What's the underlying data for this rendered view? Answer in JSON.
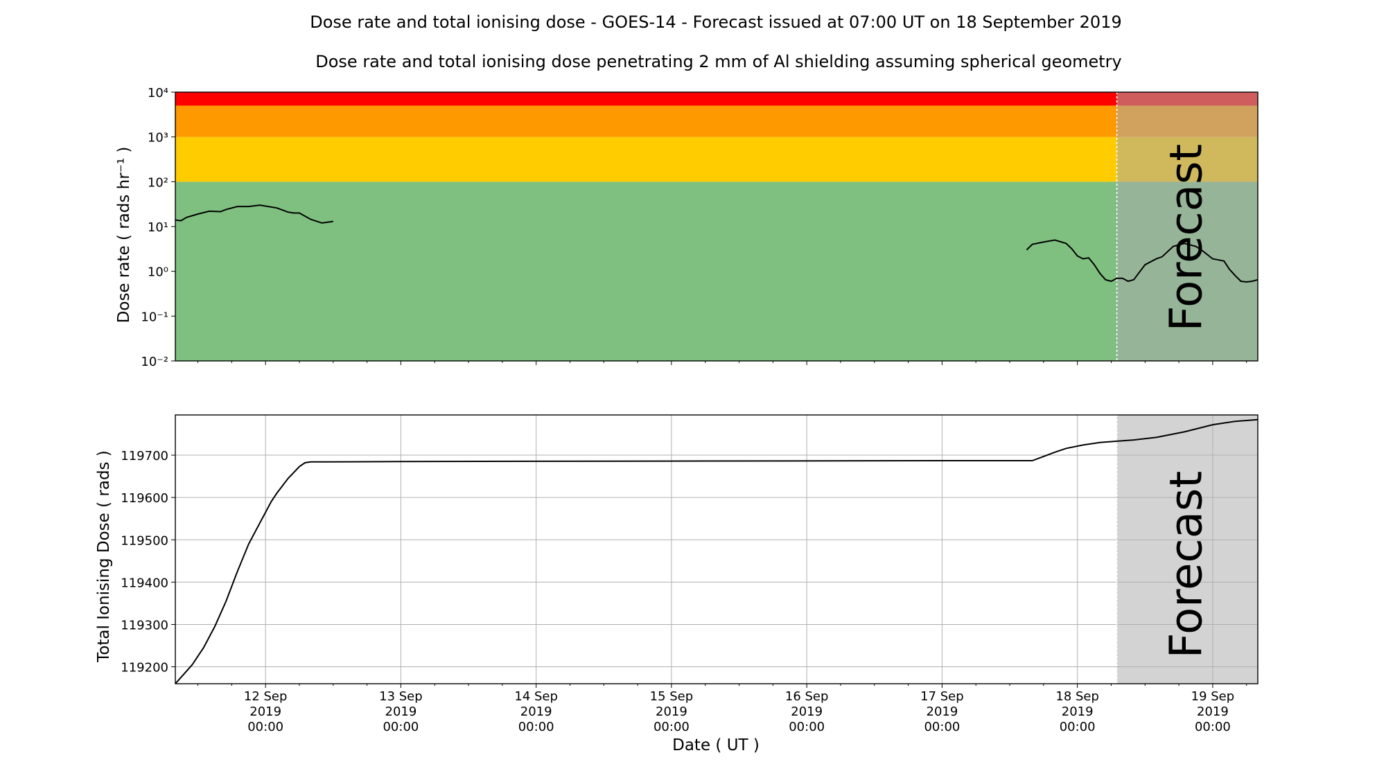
{
  "figure": {
    "title": "Dose rate and total ionising dose - GOES-14 - Forecast issued at 07:00 UT on 18 September 2019",
    "subtitle": "Dose rate and total ionising dose penetrating 2 mm of Al shielding assuming spherical geometry",
    "xlabel": "Date ( UT )",
    "forecast_label": "Forecast"
  },
  "chart_data": [
    {
      "type": "line",
      "panel": "top",
      "ylabel": "Dose rate ( rads hr⁻¹ )",
      "yscale": "log",
      "ylim": [
        0.01,
        10000
      ],
      "y_tick_labels": [
        "10⁻²",
        "10⁻¹",
        "10⁰",
        "10¹",
        "10²",
        "10³",
        "10⁴"
      ],
      "xlim": [
        "2019-09-11 08:00",
        "2019-09-19 08:00"
      ],
      "forecast_start": "2019-09-18 07:00",
      "grid": false,
      "bands": [
        {
          "from": 0.01,
          "to": 100,
          "color": "#7fc080"
        },
        {
          "from": 100,
          "to": 1000,
          "color": "#ffcc00"
        },
        {
          "from": 1000,
          "to": 5000,
          "color": "#ff9900"
        },
        {
          "from": 5000,
          "to": 10000,
          "color": "#ff0000"
        }
      ],
      "forecast_shade_color": "#a9a9a9",
      "line_color": "#000000",
      "series": [
        {
          "x": [
            "2019-09-11 08:00",
            "2019-09-11 09:00",
            "2019-09-11 10:00",
            "2019-09-11 12:00",
            "2019-09-11 14:00",
            "2019-09-11 16:00",
            "2019-09-11 17:00",
            "2019-09-11 19:00",
            "2019-09-11 21:00",
            "2019-09-11 23:00",
            "2019-09-12 02:00",
            "2019-09-12 04:00",
            "2019-09-12 05:00",
            "2019-09-12 06:00",
            "2019-09-12 08:00",
            "2019-09-12 10:00",
            "2019-09-12 11:00",
            "2019-09-12 12:00"
          ],
          "y": [
            14,
            13.5,
            16,
            19,
            22,
            21.5,
            24,
            28,
            28,
            30,
            26,
            21,
            20,
            20,
            14.5,
            12,
            12.5,
            13
          ]
        },
        {
          "x": [
            "2019-09-17 15:00",
            "2019-09-17 16:00",
            "2019-09-17 18:00",
            "2019-09-17 20:00",
            "2019-09-17 22:00",
            "2019-09-17 23:00",
            "2019-09-18 00:00",
            "2019-09-18 01:00",
            "2019-09-18 02:00",
            "2019-09-18 03:00",
            "2019-09-18 04:00",
            "2019-09-18 05:00",
            "2019-09-18 06:00",
            "2019-09-18 07:00",
            "2019-09-18 08:00",
            "2019-09-18 09:00",
            "2019-09-18 10:00",
            "2019-09-18 12:00",
            "2019-09-18 14:00",
            "2019-09-18 15:00",
            "2019-09-18 17:00",
            "2019-09-18 19:00",
            "2019-09-18 21:00",
            "2019-09-18 22:00",
            "2019-09-19 00:00",
            "2019-09-19 01:00",
            "2019-09-19 02:00",
            "2019-09-19 03:00",
            "2019-09-19 04:00",
            "2019-09-19 05:00",
            "2019-09-19 06:00",
            "2019-09-19 07:00",
            "2019-09-19 08:00"
          ],
          "y": [
            3,
            4,
            4.5,
            5,
            4.2,
            3.2,
            2.2,
            1.9,
            2,
            1.4,
            0.9,
            0.65,
            0.6,
            0.7,
            0.7,
            0.6,
            0.65,
            1.4,
            1.9,
            2.1,
            3.6,
            4.2,
            3.6,
            3.0,
            1.9,
            1.8,
            1.7,
            1.1,
            0.8,
            0.6,
            0.58,
            0.6,
            0.65
          ]
        }
      ]
    },
    {
      "type": "line",
      "panel": "bottom",
      "ylabel": "Total Ionising Dose ( rads )",
      "ylim": [
        119160,
        119795
      ],
      "y_ticks": [
        119200,
        119300,
        119400,
        119500,
        119600,
        119700
      ],
      "x_ticks": [
        "2019-09-12 00:00",
        "2019-09-13 00:00",
        "2019-09-14 00:00",
        "2019-09-15 00:00",
        "2019-09-16 00:00",
        "2019-09-17 00:00",
        "2019-09-18 00:00",
        "2019-09-19 00:00"
      ],
      "x_tick_labels": [
        [
          "12 Sep",
          "2019",
          "00:00"
        ],
        [
          "13 Sep",
          "2019",
          "00:00"
        ],
        [
          "14 Sep",
          "2019",
          "00:00"
        ],
        [
          "15 Sep",
          "2019",
          "00:00"
        ],
        [
          "16 Sep",
          "2019",
          "00:00"
        ],
        [
          "17 Sep",
          "2019",
          "00:00"
        ],
        [
          "18 Sep",
          "2019",
          "00:00"
        ],
        [
          "19 Sep",
          "2019",
          "00:00"
        ]
      ],
      "xlim": [
        "2019-09-11 08:00",
        "2019-09-19 08:00"
      ],
      "forecast_start": "2019-09-18 07:00",
      "grid": true,
      "forecast_shade_color": "#d3d3d3",
      "line_color": "#000000",
      "series": [
        {
          "x": [
            "2019-09-11 08:00",
            "2019-09-11 10:00",
            "2019-09-11 11:00",
            "2019-09-11 13:00",
            "2019-09-11 15:00",
            "2019-09-11 17:00",
            "2019-09-11 19:00",
            "2019-09-11 21:00",
            "2019-09-11 23:00",
            "2019-09-12 01:00",
            "2019-09-12 02:00",
            "2019-09-12 04:00",
            "2019-09-12 06:00",
            "2019-09-12 07:00",
            "2019-09-12 08:00",
            "2019-09-12 09:00",
            "2019-09-12 10:00",
            "2019-09-13 00:00",
            "2019-09-15 00:00",
            "2019-09-17 00:00",
            "2019-09-17 14:00",
            "2019-09-17 16:00",
            "2019-09-17 18:00",
            "2019-09-17 20:00",
            "2019-09-17 22:00",
            "2019-09-18 01:00",
            "2019-09-18 04:00",
            "2019-09-18 07:00",
            "2019-09-18 10:00",
            "2019-09-18 14:00",
            "2019-09-18 19:00",
            "2019-09-19 00:00",
            "2019-09-19 04:00",
            "2019-09-19 08:00"
          ],
          "y": [
            119160,
            119190,
            119205,
            119245,
            119295,
            119355,
            119425,
            119490,
            119540,
            119590,
            119610,
            119645,
            119673,
            119682,
            119684,
            119684,
            119684,
            119685,
            119686,
            119687,
            119687,
            119687,
            119697,
            119707,
            119716,
            119724,
            119730,
            119733,
            119736,
            119742,
            119755,
            119772,
            119780,
            119784
          ]
        }
      ]
    }
  ]
}
